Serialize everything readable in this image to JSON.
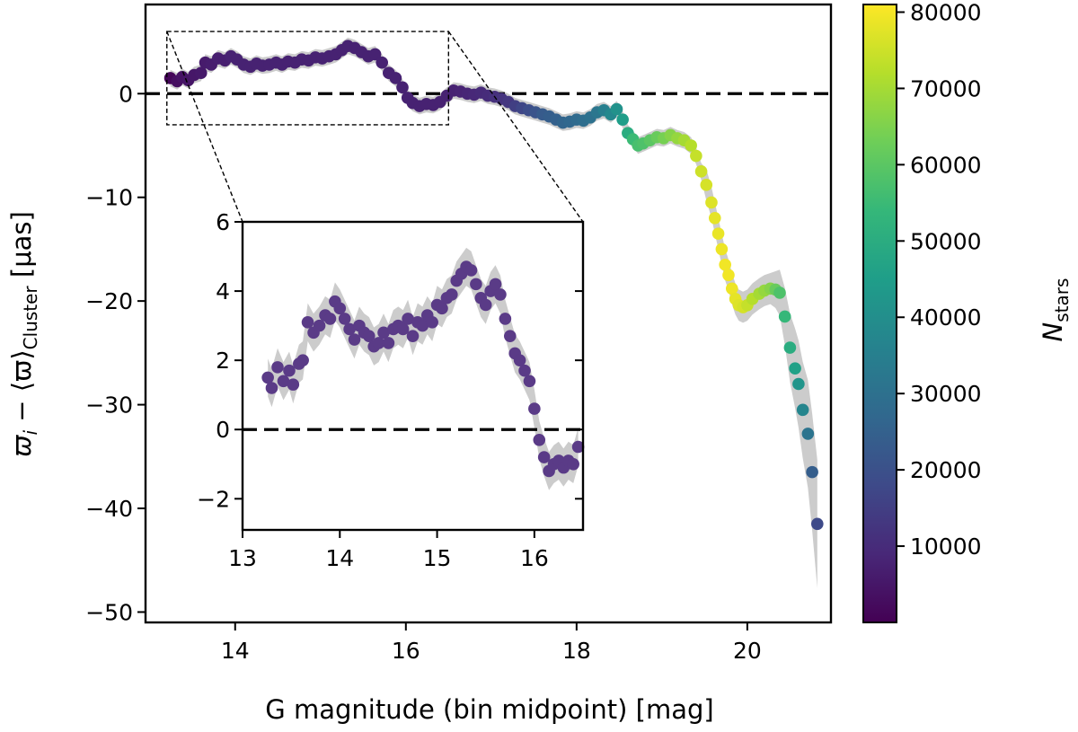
{
  "chart_data": [
    {
      "type": "scatter",
      "panel": "main",
      "xlabel": "G magnitude (bin midpoint) [mag]",
      "ylabel_parts": {
        "pre": "ϖ",
        "sub_i": "i",
        "mid": " − ⟨ϖ⟩",
        "sub": "Cluster",
        "post": " [μas]"
      },
      "xlim": [
        12.95,
        20.98
      ],
      "ylim": [
        -51,
        8.6
      ],
      "x_ticks": [
        14,
        16,
        18,
        20
      ],
      "y_ticks": [
        0,
        -10,
        -20,
        -30,
        -40,
        -50
      ],
      "x_tick_labels": [
        "14",
        "16",
        "18",
        "20"
      ],
      "y_tick_labels": [
        "0",
        "−10",
        "−20",
        "−30",
        "−40",
        "−50"
      ],
      "reference_line_y": 0,
      "color_by": "N_stars",
      "points": [
        [
          13.24,
          1.5,
          1000
        ],
        [
          13.32,
          1.2,
          3000
        ],
        [
          13.38,
          1.6,
          4000
        ],
        [
          13.45,
          1.3,
          4500
        ],
        [
          13.52,
          1.8,
          5000
        ],
        [
          13.6,
          2.0,
          5500
        ],
        [
          13.65,
          3.0,
          6000
        ],
        [
          13.72,
          2.8,
          6500
        ],
        [
          13.8,
          3.4,
          7000
        ],
        [
          13.88,
          3.2,
          7000
        ],
        [
          13.95,
          3.6,
          7500
        ],
        [
          14.02,
          3.3,
          7500
        ],
        [
          14.1,
          2.8,
          7500
        ],
        [
          14.18,
          2.6,
          7500
        ],
        [
          14.25,
          2.9,
          7500
        ],
        [
          14.32,
          2.7,
          7500
        ],
        [
          14.4,
          2.8,
          7500
        ],
        [
          14.48,
          3.0,
          7500
        ],
        [
          14.55,
          2.8,
          7500
        ],
        [
          14.62,
          3.1,
          7500
        ],
        [
          14.7,
          3.0,
          7500
        ],
        [
          14.78,
          3.3,
          7500
        ],
        [
          14.86,
          3.2,
          7500
        ],
        [
          14.94,
          3.5,
          7500
        ],
        [
          15.02,
          3.4,
          7500
        ],
        [
          15.1,
          3.6,
          7500
        ],
        [
          15.18,
          3.8,
          7500
        ],
        [
          15.25,
          4.2,
          7500
        ],
        [
          15.32,
          4.6,
          7500
        ],
        [
          15.4,
          4.4,
          7500
        ],
        [
          15.48,
          4.0,
          7500
        ],
        [
          15.56,
          3.6,
          7500
        ],
        [
          15.64,
          3.8,
          7500
        ],
        [
          15.72,
          3.0,
          7500
        ],
        [
          15.8,
          2.0,
          7500
        ],
        [
          15.88,
          1.5,
          7500
        ],
        [
          15.96,
          0.6,
          7500
        ],
        [
          16.02,
          -0.4,
          7500
        ],
        [
          16.08,
          -0.9,
          7500
        ],
        [
          16.16,
          -1.2,
          7500
        ],
        [
          16.24,
          -1.0,
          7500
        ],
        [
          16.32,
          -1.1,
          7500
        ],
        [
          16.4,
          -0.8,
          7500
        ],
        [
          16.48,
          -0.2,
          7500
        ],
        [
          16.56,
          0.3,
          7500
        ],
        [
          16.64,
          0.2,
          8000
        ],
        [
          16.72,
          0.0,
          8500
        ],
        [
          16.8,
          -0.1,
          9000
        ],
        [
          16.88,
          0.1,
          9500
        ],
        [
          16.96,
          -0.2,
          10000
        ],
        [
          17.04,
          -0.3,
          11000
        ],
        [
          17.12,
          -0.5,
          12000
        ],
        [
          17.2,
          -0.8,
          13000
        ],
        [
          17.28,
          -1.2,
          15000
        ],
        [
          17.36,
          -1.4,
          17000
        ],
        [
          17.44,
          -1.6,
          19000
        ],
        [
          17.52,
          -1.8,
          21000
        ],
        [
          17.6,
          -2.0,
          23000
        ],
        [
          17.68,
          -2.2,
          24000
        ],
        [
          17.76,
          -2.5,
          25000
        ],
        [
          17.84,
          -2.8,
          26000
        ],
        [
          17.92,
          -2.7,
          27000
        ],
        [
          18.0,
          -2.5,
          28000
        ],
        [
          18.08,
          -2.6,
          29000
        ],
        [
          18.16,
          -2.3,
          30000
        ],
        [
          18.24,
          -1.8,
          32000
        ],
        [
          18.32,
          -1.6,
          35000
        ],
        [
          18.4,
          -2.0,
          38000
        ],
        [
          18.47,
          -1.5,
          41000
        ],
        [
          18.54,
          -2.5,
          45000
        ],
        [
          18.6,
          -3.8,
          50000
        ],
        [
          18.66,
          -4.4,
          55000
        ],
        [
          18.72,
          -5.0,
          57000
        ],
        [
          18.78,
          -4.8,
          58000
        ],
        [
          18.86,
          -4.5,
          60000
        ],
        [
          18.94,
          -4.2,
          62000
        ],
        [
          19.02,
          -4.3,
          64000
        ],
        [
          19.1,
          -4.0,
          66000
        ],
        [
          19.18,
          -4.3,
          68000
        ],
        [
          19.26,
          -4.5,
          70000
        ],
        [
          19.34,
          -5.0,
          72000
        ],
        [
          19.4,
          -6.0,
          74000
        ],
        [
          19.46,
          -7.5,
          75000
        ],
        [
          19.52,
          -8.8,
          76000
        ],
        [
          19.58,
          -10.5,
          77000
        ],
        [
          19.62,
          -12.0,
          78000
        ],
        [
          19.66,
          -13.5,
          78500
        ],
        [
          19.7,
          -15.0,
          79000
        ],
        [
          19.74,
          -16.5,
          79500
        ],
        [
          19.78,
          -17.5,
          79500
        ],
        [
          19.82,
          -18.8,
          79000
        ],
        [
          19.86,
          -19.8,
          78000
        ],
        [
          19.9,
          -20.4,
          77000
        ],
        [
          19.95,
          -20.6,
          76000
        ],
        [
          20.0,
          -20.4,
          74000
        ],
        [
          20.06,
          -19.8,
          72000
        ],
        [
          20.14,
          -19.3,
          70000
        ],
        [
          20.2,
          -19.0,
          68000
        ],
        [
          20.27,
          -18.8,
          66000
        ],
        [
          20.33,
          -18.9,
          62000
        ],
        [
          20.38,
          -19.2,
          58000
        ],
        [
          20.44,
          -21.5,
          54000
        ],
        [
          20.5,
          -24.5,
          50000
        ],
        [
          20.56,
          -26.5,
          46000
        ],
        [
          20.6,
          -28.0,
          42000
        ],
        [
          20.65,
          -30.5,
          37000
        ],
        [
          20.71,
          -32.8,
          31000
        ],
        [
          20.76,
          -36.5,
          24000
        ],
        [
          20.82,
          -41.5,
          18000
        ]
      ]
    },
    {
      "type": "scatter",
      "panel": "inset",
      "xlim": [
        13.0,
        16.5
      ],
      "ylim": [
        -2.9,
        6.0
      ],
      "x_ticks": [
        13,
        14,
        15,
        16
      ],
      "y_ticks": [
        -2,
        0,
        2,
        4,
        6
      ],
      "x_tick_labels": [
        "13",
        "14",
        "15",
        "16"
      ],
      "y_tick_labels": [
        "−2",
        "0",
        "2",
        "4",
        "6"
      ],
      "reference_line_y": 0,
      "zoom_region_x": [
        13.2,
        16.5
      ],
      "zoom_region_y": [
        -3.0,
        6.0
      ],
      "points": [
        [
          13.26,
          1.5
        ],
        [
          13.3,
          1.2
        ],
        [
          13.36,
          1.8
        ],
        [
          13.42,
          1.4
        ],
        [
          13.48,
          1.7
        ],
        [
          13.52,
          1.3
        ],
        [
          13.58,
          1.9
        ],
        [
          13.62,
          2.0
        ],
        [
          13.67,
          3.1
        ],
        [
          13.73,
          2.8
        ],
        [
          13.79,
          3.0
        ],
        [
          13.85,
          3.3
        ],
        [
          13.9,
          3.2
        ],
        [
          13.95,
          3.7
        ],
        [
          14.0,
          3.5
        ],
        [
          14.05,
          3.2
        ],
        [
          14.1,
          2.9
        ],
        [
          14.15,
          2.6
        ],
        [
          14.2,
          3.0
        ],
        [
          14.25,
          2.8
        ],
        [
          14.3,
          2.7
        ],
        [
          14.35,
          2.4
        ],
        [
          14.4,
          2.5
        ],
        [
          14.45,
          2.8
        ],
        [
          14.5,
          2.5
        ],
        [
          14.55,
          2.9
        ],
        [
          14.6,
          3.0
        ],
        [
          14.65,
          2.9
        ],
        [
          14.7,
          3.2
        ],
        [
          14.75,
          2.7
        ],
        [
          14.8,
          3.1
        ],
        [
          14.85,
          3.0
        ],
        [
          14.9,
          3.3
        ],
        [
          14.95,
          3.1
        ],
        [
          15.0,
          3.6
        ],
        [
          15.05,
          3.5
        ],
        [
          15.1,
          3.8
        ],
        [
          15.15,
          3.9
        ],
        [
          15.2,
          4.3
        ],
        [
          15.25,
          4.5
        ],
        [
          15.3,
          4.7
        ],
        [
          15.35,
          4.6
        ],
        [
          15.4,
          4.2
        ],
        [
          15.45,
          3.8
        ],
        [
          15.5,
          3.6
        ],
        [
          15.55,
          4.0
        ],
        [
          15.6,
          4.2
        ],
        [
          15.65,
          3.9
        ],
        [
          15.7,
          3.2
        ],
        [
          15.75,
          2.7
        ],
        [
          15.8,
          2.2
        ],
        [
          15.85,
          2.0
        ],
        [
          15.9,
          1.7
        ],
        [
          15.95,
          1.4
        ],
        [
          16.0,
          0.6
        ],
        [
          16.05,
          -0.3
        ],
        [
          16.1,
          -0.8
        ],
        [
          16.15,
          -1.2
        ],
        [
          16.2,
          -1.0
        ],
        [
          16.25,
          -0.9
        ],
        [
          16.3,
          -1.1
        ],
        [
          16.35,
          -0.9
        ],
        [
          16.4,
          -1.0
        ],
        [
          16.45,
          -0.5
        ]
      ]
    },
    {
      "type": "colorbar",
      "label": "N",
      "label_sub": "stars",
      "range": [
        0,
        81000
      ],
      "ticks": [
        10000,
        20000,
        30000,
        40000,
        50000,
        60000,
        70000,
        80000
      ],
      "tick_labels": [
        "10000",
        "20000",
        "30000",
        "40000",
        "50000",
        "60000",
        "70000",
        "80000"
      ],
      "colormap_stops": [
        "#440154",
        "#482878",
        "#3e4a89",
        "#31688e",
        "#26828e",
        "#1f9e89",
        "#35b779",
        "#6ece58",
        "#b5de2b",
        "#fde725"
      ]
    }
  ]
}
